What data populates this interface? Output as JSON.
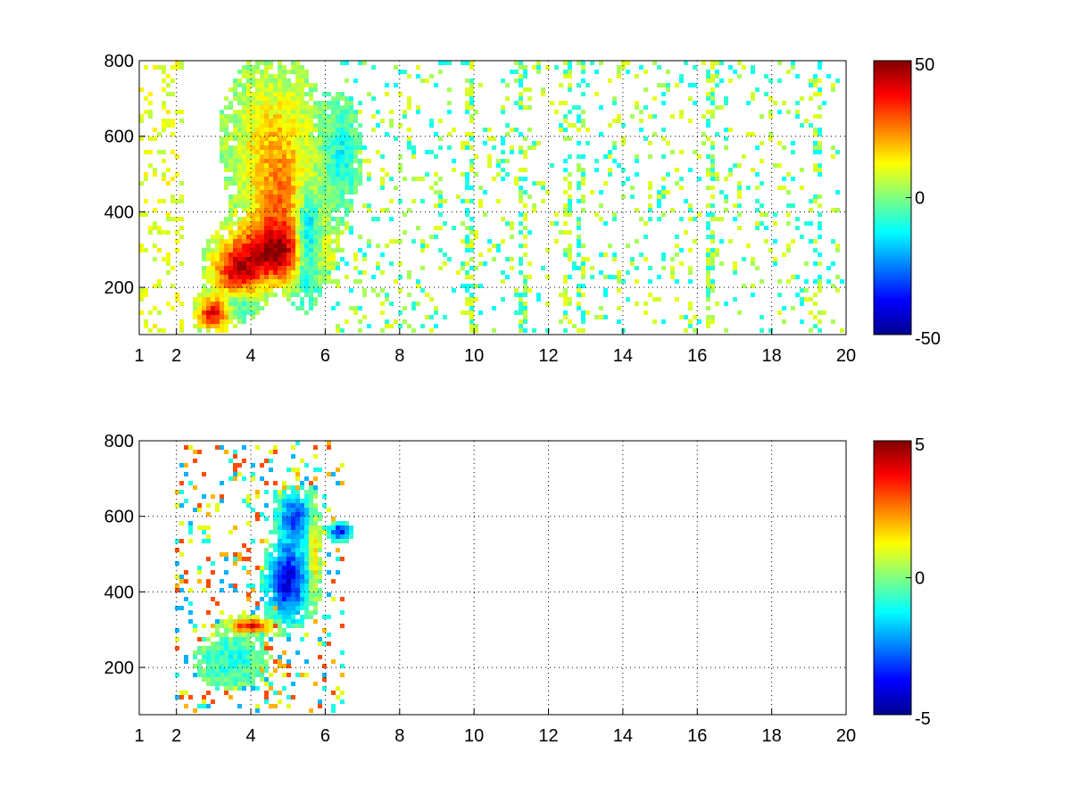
{
  "chart_data": [
    {
      "type": "heatmap",
      "title": "",
      "xlabel": "",
      "ylabel": "",
      "xlim": [
        1,
        20
      ],
      "ylim": [
        75,
        800
      ],
      "x_ticks": [
        1,
        2,
        4,
        6,
        8,
        10,
        12,
        14,
        16,
        18,
        20
      ],
      "y_ticks": [
        200,
        400,
        600,
        800
      ],
      "grid": "on",
      "colormap": "jet",
      "clim": [
        -50,
        50
      ],
      "colorbar_ticks": [
        -50,
        0,
        50
      ],
      "colorbar_labels": [
        "-50",
        "0",
        "50"
      ],
      "features": [
        {
          "x": 4.6,
          "y": 290,
          "sx": 0.85,
          "sy": 55,
          "value": 42
        },
        {
          "x": 3.0,
          "y": 130,
          "sx": 0.3,
          "sy": 30,
          "value": 40
        },
        {
          "x": 3.6,
          "y": 230,
          "sx": 0.4,
          "sy": 45,
          "value": 30
        },
        {
          "x": 4.9,
          "y": 420,
          "sx": 0.6,
          "sy": 90,
          "value": 22
        },
        {
          "x": 4.6,
          "y": 600,
          "sx": 0.7,
          "sy": 110,
          "value": 15
        },
        {
          "x": 5.5,
          "y": 320,
          "sx": 0.25,
          "sy": 90,
          "value": -38
        },
        {
          "x": 3.6,
          "y": 160,
          "sx": 0.35,
          "sy": 25,
          "value": -15
        },
        {
          "x": 6.4,
          "y": 550,
          "sx": 0.3,
          "sy": 80,
          "value": -12
        }
      ],
      "noise": {
        "x_start": 6.0,
        "x_end": 20.0,
        "density": 0.13,
        "values": [
          -12,
          -8,
          4,
          8,
          10
        ]
      },
      "stripes": [
        9.9,
        11.3,
        12.5,
        12.9,
        16.4,
        19.2
      ]
    },
    {
      "type": "heatmap",
      "title": "",
      "xlabel": "",
      "ylabel": "",
      "xlim": [
        1,
        20
      ],
      "ylim": [
        75,
        800
      ],
      "x_ticks": [
        1,
        2,
        4,
        6,
        8,
        10,
        12,
        14,
        16,
        18,
        20
      ],
      "y_ticks": [
        200,
        400,
        600,
        800
      ],
      "grid": "on",
      "colormap": "jet",
      "clim": [
        -5,
        5
      ],
      "colorbar_ticks": [
        -5,
        0,
        5
      ],
      "colorbar_labels": [
        "-5",
        "0",
        "5"
      ],
      "features": [
        {
          "x": 4.0,
          "y": 310,
          "sx": 0.4,
          "sy": 12,
          "value": 4
        },
        {
          "x": 5.0,
          "y": 430,
          "sx": 0.35,
          "sy": 70,
          "value": -4
        },
        {
          "x": 3.5,
          "y": 220,
          "sx": 0.5,
          "sy": 40,
          "value": -1
        },
        {
          "x": 5.2,
          "y": 600,
          "sx": 0.3,
          "sy": 40,
          "value": -3
        },
        {
          "x": 6.4,
          "y": 560,
          "sx": 0.2,
          "sy": 15,
          "value": -3.5
        },
        {
          "x": 5.7,
          "y": 500,
          "sx": 0.1,
          "sy": 80,
          "value": 2
        }
      ],
      "noise": {
        "x_start": 2.0,
        "x_end": 6.5,
        "density": 0.18,
        "values": [
          -2,
          -1,
          1,
          2,
          3
        ]
      },
      "stripes": []
    }
  ]
}
